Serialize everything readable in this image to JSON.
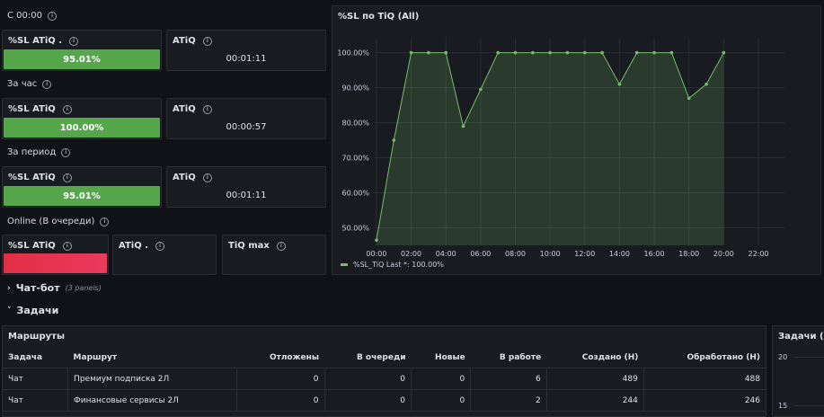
{
  "sections": [
    {
      "title": "С 00:00",
      "sl_label": "%SL ATiQ .",
      "sl_value": "95.01%",
      "atiq_label": "ATiQ",
      "atiq_value": "00:01:11"
    },
    {
      "title": "За час",
      "sl_label": "%SL ATiQ",
      "sl_value": "100.00%",
      "atiq_label": "ATiQ",
      "atiq_value": "00:00:57"
    },
    {
      "title": "За период",
      "sl_label": "%SL ATiQ",
      "sl_value": "95.01%",
      "atiq_label": "ATiQ",
      "atiq_value": "00:01:11"
    }
  ],
  "online": {
    "title": "Online (В очереди)",
    "sl_label": "%SL ATiQ",
    "atiq_label": "ATiQ .",
    "tiq_label": "TiQ max"
  },
  "chart_panel": {
    "title": "%SL по TiQ (All)",
    "legend": "%SL_TiQ  Last *: 100.00%"
  },
  "chart_data": {
    "type": "line",
    "title": "%SL по TiQ (All)",
    "x_ticks": [
      "00:00",
      "02:00",
      "04:00",
      "06:00",
      "08:00",
      "10:00",
      "12:00",
      "14:00",
      "16:00",
      "18:00",
      "20:00",
      "22:00"
    ],
    "y_ticks": [
      "50.00%",
      "60.00%",
      "70.00%",
      "80.00%",
      "90.00%",
      "100.00%"
    ],
    "ylim": [
      45,
      104
    ],
    "xlim_hours": [
      -0.1,
      23.5
    ],
    "series": [
      {
        "name": "%SL_TiQ",
        "color": "#73bf69",
        "x_hours": [
          0,
          1,
          2,
          3,
          4,
          5,
          6,
          7,
          8,
          9,
          10,
          11,
          12,
          13,
          14,
          15,
          16,
          17,
          18,
          19,
          20
        ],
        "values": [
          46.5,
          75,
          100,
          100,
          100,
          79,
          89.5,
          100,
          100,
          100,
          100,
          100,
          100,
          100,
          91,
          100,
          100,
          100,
          87,
          91,
          100
        ]
      }
    ]
  },
  "rows": {
    "chatbot": "Чат-бот",
    "chatbot_count": "(3 panels)",
    "tasks": "Задачи"
  },
  "routes": {
    "title": "Маршруты",
    "columns": [
      "Задача",
      "Маршрут",
      "Отложены",
      "В очереди",
      "Новые",
      "В работе",
      "Создано (Н)",
      "Обработано (Н)"
    ],
    "rows": [
      [
        "Чат",
        "Премиум подписка 2Л",
        "0",
        "0",
        "0",
        "6",
        "489",
        "488"
      ],
      [
        "Чат",
        "Финансовые сервисы 2Л",
        "0",
        "0",
        "0",
        "2",
        "244",
        "246"
      ]
    ]
  },
  "tasks_panel": {
    "title": "Задачи (All",
    "y_ticks": [
      "20",
      "15"
    ]
  }
}
